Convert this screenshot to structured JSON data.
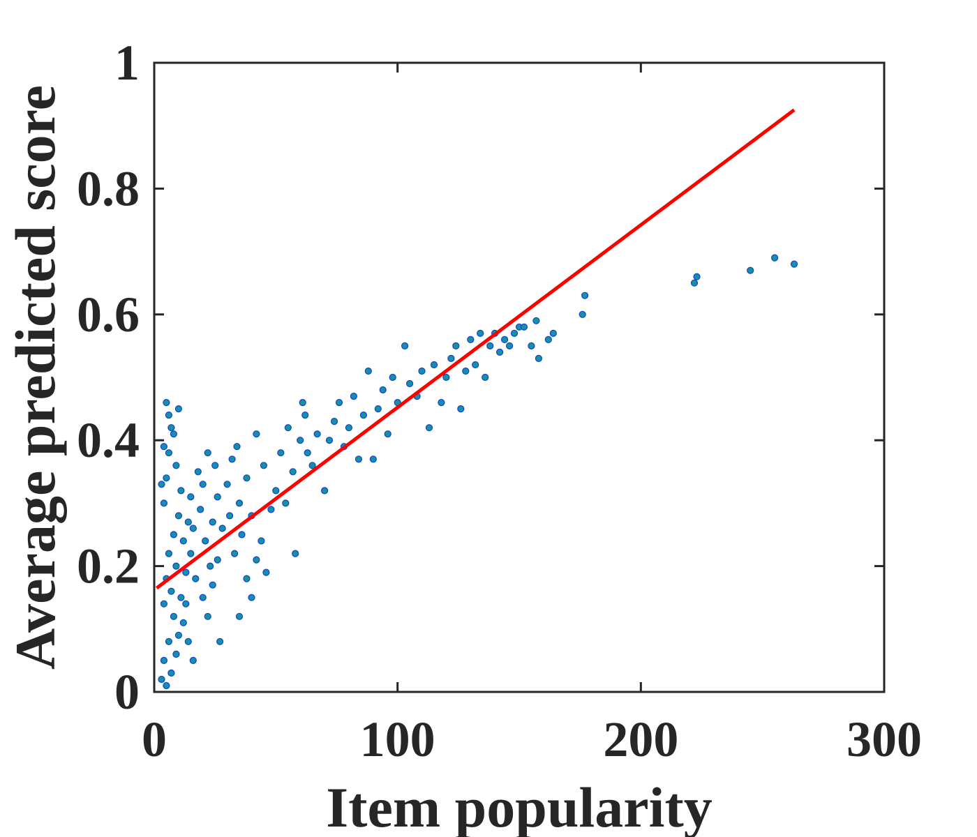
{
  "chart_data": {
    "type": "scatter",
    "title": "",
    "xlabel": "Item popularity",
    "ylabel": "Average predicted score",
    "xlim": [
      0,
      300
    ],
    "ylim": [
      0,
      1
    ],
    "xticks": [
      0,
      100,
      200,
      300
    ],
    "yticks": [
      0,
      0.2,
      0.4,
      0.6,
      0.8,
      1
    ],
    "xtick_labels": [
      "0",
      "100",
      "200",
      "300"
    ],
    "ytick_labels": [
      "0",
      "0.2",
      "0.4",
      "0.6",
      "0.8",
      "1"
    ],
    "grid": false,
    "legend": "none",
    "colors": {
      "points_fill": "#1790a0",
      "points_edge": "#1040e0",
      "fit_line": "#ff0000",
      "axes": "#262626"
    },
    "fit_line": {
      "x": [
        1,
        263
      ],
      "y": [
        0.165,
        0.925
      ]
    },
    "series": [
      {
        "type": "scatter",
        "points": [
          [
            3,
            0.02
          ],
          [
            4,
            0.05
          ],
          [
            5,
            0.01
          ],
          [
            6,
            0.08
          ],
          [
            7,
            0.03
          ],
          [
            8,
            0.12
          ],
          [
            9,
            0.06
          ],
          [
            10,
            0.09
          ],
          [
            4,
            0.14
          ],
          [
            5,
            0.18
          ],
          [
            6,
            0.22
          ],
          [
            7,
            0.16
          ],
          [
            8,
            0.25
          ],
          [
            9,
            0.2
          ],
          [
            10,
            0.28
          ],
          [
            11,
            0.15
          ],
          [
            4,
            0.3
          ],
          [
            5,
            0.34
          ],
          [
            6,
            0.38
          ],
          [
            7,
            0.42
          ],
          [
            5,
            0.46
          ],
          [
            6,
            0.44
          ],
          [
            8,
            0.41
          ],
          [
            10,
            0.45
          ],
          [
            3,
            0.33
          ],
          [
            4,
            0.39
          ],
          [
            9,
            0.36
          ],
          [
            11,
            0.32
          ],
          [
            12,
            0.24
          ],
          [
            13,
            0.19
          ],
          [
            14,
            0.27
          ],
          [
            15,
            0.22
          ],
          [
            12,
            0.11
          ],
          [
            14,
            0.08
          ],
          [
            16,
            0.05
          ],
          [
            13,
            0.14
          ],
          [
            15,
            0.31
          ],
          [
            16,
            0.26
          ],
          [
            18,
            0.35
          ],
          [
            17,
            0.18
          ],
          [
            19,
            0.29
          ],
          [
            20,
            0.33
          ],
          [
            21,
            0.24
          ],
          [
            22,
            0.38
          ],
          [
            23,
            0.2
          ],
          [
            24,
            0.27
          ],
          [
            25,
            0.36
          ],
          [
            26,
            0.31
          ],
          [
            20,
            0.15
          ],
          [
            22,
            0.12
          ],
          [
            24,
            0.17
          ],
          [
            26,
            0.21
          ],
          [
            28,
            0.26
          ],
          [
            27,
            0.08
          ],
          [
            30,
            0.33
          ],
          [
            31,
            0.28
          ],
          [
            32,
            0.37
          ],
          [
            33,
            0.22
          ],
          [
            34,
            0.39
          ],
          [
            35,
            0.3
          ],
          [
            36,
            0.25
          ],
          [
            38,
            0.34
          ],
          [
            40,
            0.28
          ],
          [
            42,
            0.41
          ],
          [
            35,
            0.12
          ],
          [
            38,
            0.18
          ],
          [
            40,
            0.15
          ],
          [
            42,
            0.21
          ],
          [
            44,
            0.24
          ],
          [
            46,
            0.19
          ],
          [
            48,
            0.29
          ],
          [
            45,
            0.36
          ],
          [
            50,
            0.32
          ],
          [
            52,
            0.38
          ],
          [
            54,
            0.3
          ],
          [
            55,
            0.42
          ],
          [
            57,
            0.35
          ],
          [
            58,
            0.22
          ],
          [
            60,
            0.4
          ],
          [
            62,
            0.44
          ],
          [
            61,
            0.46
          ],
          [
            63,
            0.38
          ],
          [
            65,
            0.36
          ],
          [
            67,
            0.41
          ],
          [
            70,
            0.32
          ],
          [
            72,
            0.4
          ],
          [
            74,
            0.43
          ],
          [
            76,
            0.46
          ],
          [
            78,
            0.39
          ],
          [
            80,
            0.42
          ],
          [
            82,
            0.47
          ],
          [
            84,
            0.37
          ],
          [
            86,
            0.44
          ],
          [
            88,
            0.51
          ],
          [
            90,
            0.37
          ],
          [
            92,
            0.45
          ],
          [
            94,
            0.48
          ],
          [
            96,
            0.41
          ],
          [
            98,
            0.5
          ],
          [
            100,
            0.46
          ],
          [
            103,
            0.55
          ],
          [
            105,
            0.49
          ],
          [
            108,
            0.47
          ],
          [
            110,
            0.51
          ],
          [
            113,
            0.42
          ],
          [
            115,
            0.52
          ],
          [
            118,
            0.46
          ],
          [
            120,
            0.5
          ],
          [
            122,
            0.53
          ],
          [
            124,
            0.55
          ],
          [
            126,
            0.45
          ],
          [
            128,
            0.51
          ],
          [
            130,
            0.56
          ],
          [
            132,
            0.52
          ],
          [
            134,
            0.57
          ],
          [
            136,
            0.5
          ],
          [
            138,
            0.55
          ],
          [
            140,
            0.57
          ],
          [
            142,
            0.54
          ],
          [
            144,
            0.56
          ],
          [
            146,
            0.55
          ],
          [
            148,
            0.57
          ],
          [
            150,
            0.58
          ],
          [
            152,
            0.58
          ],
          [
            155,
            0.55
          ],
          [
            157,
            0.59
          ],
          [
            158,
            0.53
          ],
          [
            162,
            0.56
          ],
          [
            164,
            0.57
          ],
          [
            176,
            0.6
          ],
          [
            177,
            0.63
          ],
          [
            222,
            0.65
          ],
          [
            223,
            0.66
          ],
          [
            245,
            0.67
          ],
          [
            255,
            0.69
          ],
          [
            263,
            0.68
          ]
        ]
      }
    ]
  }
}
